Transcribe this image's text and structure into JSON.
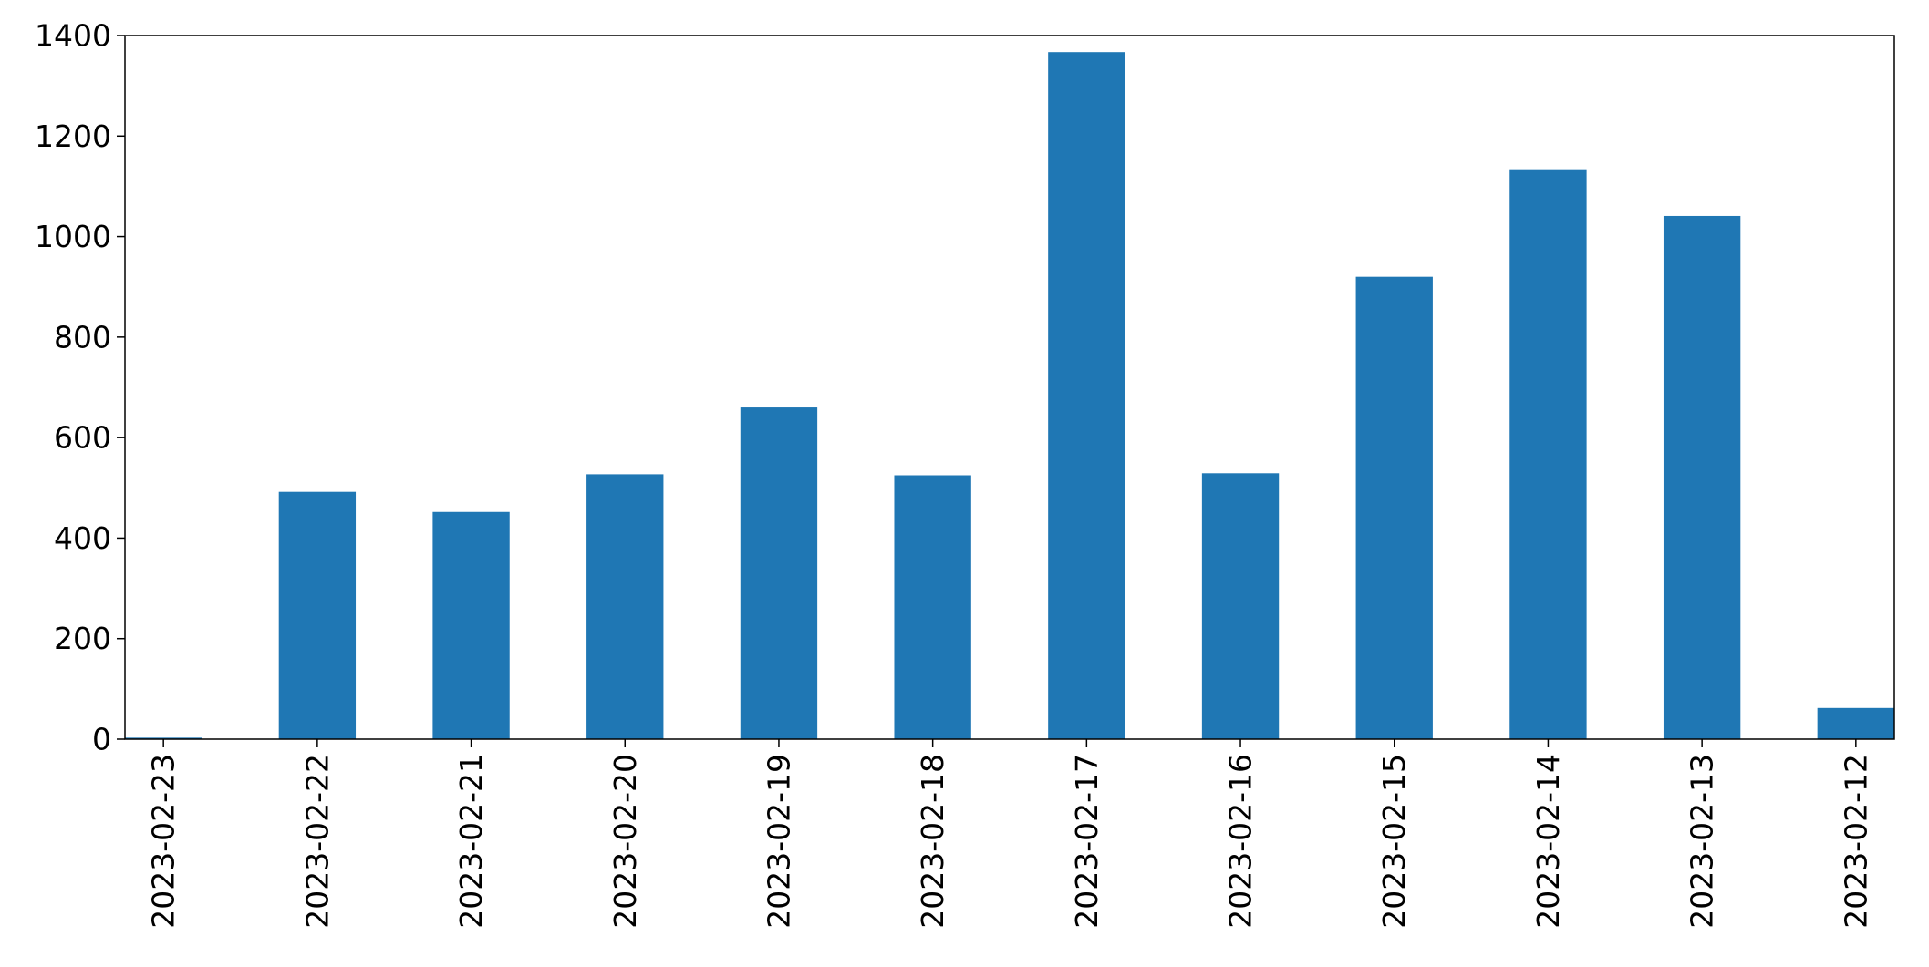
{
  "chart_data": {
    "type": "bar",
    "title": "",
    "xlabel": "",
    "ylabel": "",
    "categories": [
      "2023-02-23",
      "2023-02-22",
      "2023-02-21",
      "2023-02-20",
      "2023-02-19",
      "2023-02-18",
      "2023-02-17",
      "2023-02-16",
      "2023-02-15",
      "2023-02-14",
      "2023-02-13",
      "2023-02-12"
    ],
    "values": [
      3,
      492,
      452,
      527,
      660,
      525,
      1367,
      529,
      920,
      1134,
      1041,
      62
    ],
    "ylim": [
      0,
      1400
    ],
    "yticks": [
      0,
      200,
      400,
      600,
      800,
      1000,
      1200,
      1400
    ],
    "bar_color": "#1f77b4",
    "grid": false,
    "legend": "none"
  }
}
